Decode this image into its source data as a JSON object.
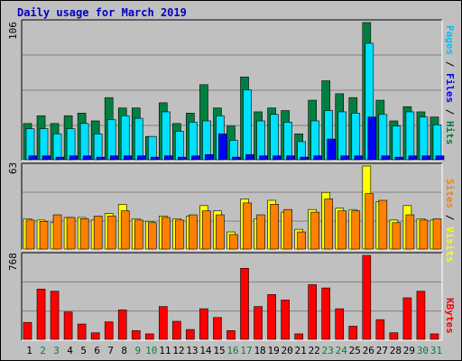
{
  "title": "Daily usage for March 2019",
  "colors": {
    "background": "#c0c0c0",
    "plot": "#c0c0c0",
    "hits": "#008040",
    "files": "#00e0ff",
    "pages": "#0000ff",
    "visits": "#ffff00",
    "sites": "#ff8000",
    "kbytes": "#ff0000",
    "title": "#0000c0",
    "weekend_day": "#008040",
    "weekday": "#000000"
  },
  "legend": {
    "top": [
      {
        "text": "Pages",
        "color": "#00c0ff"
      },
      {
        "text": " / ",
        "color": "#000000"
      },
      {
        "text": "Files",
        "color": "#0000ff"
      },
      {
        "text": " / ",
        "color": "#000000"
      },
      {
        "text": "Hits",
        "color": "#008040"
      }
    ],
    "middle": [
      {
        "text": "Sites",
        "color": "#ff8000"
      },
      {
        "text": " / ",
        "color": "#000000"
      },
      {
        "text": "Visits",
        "color": "#ffff00"
      }
    ],
    "bottom": [
      {
        "text": "KBytes",
        "color": "#ff0000"
      }
    ]
  },
  "chart_data": {
    "type": "bar",
    "title": "Daily usage for March 2019",
    "categories": [
      "1",
      "2",
      "3",
      "4",
      "5",
      "6",
      "7",
      "8",
      "9",
      "10",
      "11",
      "12",
      "13",
      "14",
      "15",
      "16",
      "17",
      "18",
      "19",
      "20",
      "21",
      "22",
      "23",
      "24",
      "25",
      "26",
      "27",
      "28",
      "29",
      "30",
      "31"
    ],
    "weekend_days": [
      "2",
      "3",
      "9",
      "10",
      "16",
      "17",
      "23",
      "24",
      "30",
      "31"
    ],
    "panels": [
      {
        "name": "hits-files-pages",
        "ymax_label": "106",
        "ymax": 106,
        "series": [
          {
            "name": "Hits",
            "color": "#008040",
            "values": [
              28,
              34,
              28,
              34,
              36,
              30,
              48,
              40,
              40,
              18,
              44,
              28,
              36,
              58,
              40,
              26,
              64,
              37,
              40,
              38,
              20,
              46,
              61,
              51,
              48,
              106,
              46,
              30,
              41,
              37,
              33
            ]
          },
          {
            "name": "Files",
            "color": "#00e0ff",
            "values": [
              24,
              24,
              20,
              24,
              28,
              20,
              31,
              34,
              32,
              18,
              37,
              22,
              29,
              30,
              34,
              15,
              54,
              30,
              35,
              29,
              14,
              30,
              38,
              37,
              36,
              90,
              35,
              26,
              37,
              33,
              27
            ]
          },
          {
            "name": "Pages",
            "color": "#0000ff",
            "values": [
              3,
              3,
              2,
              3,
              3,
              2,
              3,
              3,
              3,
              2,
              3,
              2,
              3,
              4,
              20,
              2,
              4,
              3,
              3,
              3,
              2,
              3,
              16,
              3,
              3,
              33,
              3,
              2,
              3,
              3,
              3
            ]
          }
        ]
      },
      {
        "name": "visits-sites",
        "ymax_label": "63",
        "ymax": 63,
        "series": [
          {
            "name": "Visits",
            "color": "#ffff00",
            "values": [
              23,
              22,
              20,
              24,
              24,
              22,
              27,
              34,
              23,
              21,
              25,
              23,
              25,
              33,
              29,
              13,
              38,
              23,
              37,
              28,
              15,
              30,
              43,
              31,
              30,
              63,
              36,
              22,
              33,
              23,
              22
            ]
          },
          {
            "name": "Sites",
            "color": "#ff8000",
            "values": [
              22,
              21,
              26,
              24,
              23,
              25,
              25,
              29,
              22,
              20,
              24,
              22,
              26,
              29,
              26,
              11,
              35,
              26,
              34,
              30,
              13,
              28,
              38,
              29,
              29,
              42,
              37,
              20,
              26,
              22,
              23
            ]
          }
        ]
      },
      {
        "name": "kbytes",
        "ymax_label": "768",
        "ymax": 768,
        "series": [
          {
            "name": "KBytes",
            "color": "#ff0000",
            "values": [
              155,
              460,
              440,
              250,
              140,
              60,
              160,
              270,
              80,
              50,
              300,
              165,
              90,
              280,
              200,
              80,
              650,
              300,
              410,
              360,
              50,
              500,
              470,
              280,
              120,
              768,
              180,
              60,
              380,
              440,
              50
            ]
          }
        ]
      }
    ]
  }
}
